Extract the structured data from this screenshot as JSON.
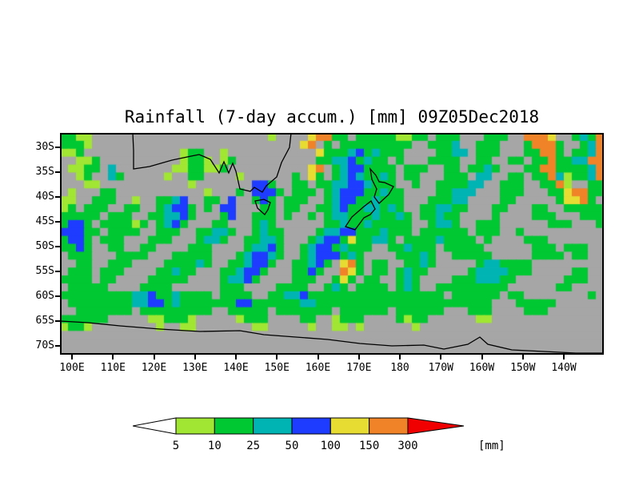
{
  "title": "Rainfall (7-day accum.) [mm] 09Z05Dec2018",
  "chart_data": {
    "type": "heatmap",
    "title": "Rainfall (7-day accum.) [mm] 09Z05Dec2018",
    "x_ticks": [
      "100E",
      "110E",
      "120E",
      "130E",
      "140E",
      "150E",
      "160E",
      "170E",
      "180",
      "170W",
      "160W",
      "150W",
      "140W"
    ],
    "y_ticks": [
      "30S",
      "35S",
      "40S",
      "45S",
      "50S",
      "55S",
      "60S",
      "65S",
      "70S"
    ],
    "legend": {
      "labels": [
        "5",
        "10",
        "25",
        "50",
        "100",
        "150",
        "300"
      ],
      "unit_label": "[mm]",
      "colors": [
        "#ffffff",
        "#a0e632",
        "#00c832",
        "#00b4b4",
        "#1e3cff",
        "#e6dc32",
        "#f08228",
        "#f00000"
      ],
      "categories": [
        "<5",
        "5-10",
        "10-25",
        "25-50",
        "50-100",
        "100-150",
        "150-300",
        ">300"
      ]
    },
    "palette": {
      ".": "#a6a6a6",
      "l": "#a0e632",
      "g": "#00c832",
      "c": "#00b4b4",
      "b": "#1e3cff",
      "y": "#e6dc32",
      "o": "#f08228",
      "r": "#f00000"
    },
    "grid_key": {
      ".": "<5 mm",
      "l": "5-10 mm",
      "g": "10-25 mm",
      "c": "25-50 mm",
      "b": "50-100 mm",
      "y": "100-150 mm",
      "o": "150-300 mm",
      "r": ">300 mm"
    },
    "grid_cols": 68,
    "grid": [
      "ggll......................l....yoogg.gggggllgg.ggg...ggg..oooy..gcgo",
      "gggl..........................yo.g.ggggggggg..gggc..ggg...gooog..gco",
      "llg............lgg..l...........ygggcbgcggg....ggcc.ggg...ggoog.ggcoo",
      "..llg..........lggl.lg..........ggccbgcgg.g...gggg..gg..gg.ggoggccoo",
      ".llgg.c.......llggllg..........yo.gcbbgggg.ggg..gg.ggcg...ggooggggco",
      "..lg..cg.....l..gg....l......g.yg.gcbcggcg.gg...ggg.cc..gg.ggoclggco",
      "...ll...........l.......bbg..gg.ggccbbcggg..g..ggggcc..ggg..ggol..gg",
      ".l...gg...........l...g.bbbg.ggg.gcbbbggcgg....ggccc...ggg...ggyoogg",
      "ll..ggg..l..ggcb..gg.b..gbg.ggg..gcbbggcggg...gggcc....gg.....gyyog.",
      "lg.ggg..gg..gcbbg.g.bb...gg.gg..ggcbggccgcg..ggccgg...gg...gg..ggggg",
      "ggggg.ggg..ggccbg...gb..ggg.g..g.gccgggcggcg.ggcgg....g....ggg...ggg",
      "gbbg.gggglg.gcbg...gg...gcg......ggcggcggggg..gccg..ggg......ggg...g",
      "bbbgg.gggg..ggg..ggccg..gcgg....gccbbgggcggg.gggggg.ggg..g..........",
      "gbbg.ggg...ggg...gccg..ggccg...gcbbgyggccg.ggggcgggg.g....ggg.......",
      "ggbg..gg..gg....ggg....gccbg..gcbbgcggg..ggcggg.ggggg......ggg.ggg..",
      ".ggg...gggg...ggggg...gcbbcg..gcbbbgcg....gggcg..ggggg.....gggg.gg..",
      "..gg..ggg....ggggcg..ggcbbg..ggcbg.yog.gg..ggcg.....gccgggg.........",
      ".ggg.ggg....ggcgg...ggcbbg...ggbg..oyg.gg.gcgg.....gccccggg.....gg..",
      "gggg.gg....ggggg....gccbg....ggg..gyg.gg..gcg....gggcccgg......ggg..",
      ".ggggg....gggg......ggg....gggg..gcg.gggg.gcg..ggggggggg......gg....",
      "gggggggggccbggcgggg.gggg..ggccbggggggggggggggggg.gggggg.gg........g.",
      ".ggggggggccbbgcgggggggbbggggggccgggggggggggggggggggggg...ggggg......",
      "..ggggggg.ggggggggg..ggggg.ggggggg.gggggg.gggggg...ggg....ggg.......",
      "gggggg.....llgggl.....lggg....gg..lggg....glgg......ll..............",
      "lggl........l..ll.......ll.....l..ll.l......l.......................",
      "....................................................................",
      "....................................................................",
      "...................................................................."
    ]
  }
}
